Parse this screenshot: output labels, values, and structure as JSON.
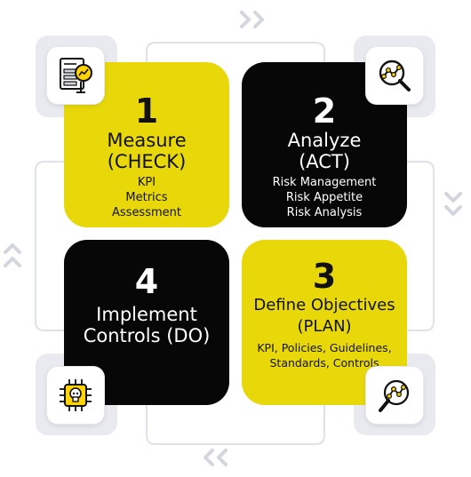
{
  "quadrants": [
    {
      "number": "1",
      "title_line1": "Measure",
      "title_line2": "(CHECK)",
      "items": [
        "KPI",
        "Metrics",
        "Assessment"
      ]
    },
    {
      "number": "2",
      "title_line1": "Analyze",
      "title_line2": "(ACT)",
      "items": [
        "Risk Management",
        "Risk Appetite",
        "Risk Analysis"
      ]
    },
    {
      "number": "3",
      "title_line1": "Define Objectives",
      "title_line2": "(PLAN)",
      "items": [
        "KPI, Policies, Guidelines,",
        "Standards, Controls"
      ]
    },
    {
      "number": "4",
      "title_line1": "Implement",
      "title_line2": "Controls (DO)",
      "items": []
    }
  ],
  "icons": {
    "top_left": "report-chart-icon",
    "top_right": "analytics-magnifier-icon",
    "bottom_left": "chip-skull-icon",
    "bottom_right": "search-analytics-icon",
    "arrows": [
      "double-chevron-right-icon",
      "double-chevron-down-icon",
      "double-chevron-left-icon",
      "double-chevron-up-icon"
    ]
  },
  "colors": {
    "yellow": "#e8d80a",
    "black": "#070707",
    "outline": "#d6d9e0",
    "accent": "#ffd400"
  }
}
